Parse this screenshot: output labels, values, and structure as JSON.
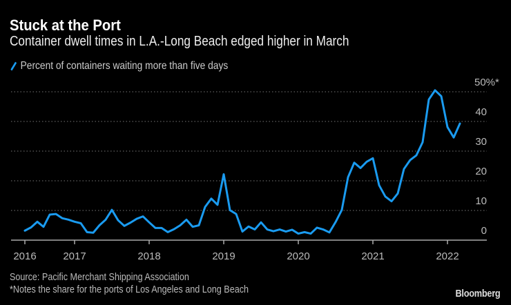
{
  "title": "Stuck at the Port",
  "subtitle": "Container dwell times in L.A.-Long Beach edged higher in March",
  "footer": {
    "source": "Source: Pacific Merchant Shipping Association",
    "note": "*Notes the share for the ports of Los Angeles and Long Beach",
    "logo": "Bloomberg"
  },
  "chart_data": {
    "type": "line",
    "title": "Stuck at the Port",
    "subtitle": "Container dwell times in L.A.-Long Beach edged higher in March",
    "legend_position": "top-left",
    "grid": true,
    "series": [
      {
        "name": "Percent of containers waiting more than five days",
        "color": "#1a9bf0",
        "start": "2016-05",
        "frequency": "monthly",
        "values": [
          3.2,
          4.3,
          6.2,
          4.5,
          8.6,
          8.8,
          7.4,
          6.9,
          6.2,
          5.7,
          2.7,
          2.5,
          5.0,
          6.9,
          10.2,
          6.7,
          4.8,
          5.9,
          7.2,
          8.0,
          6.0,
          4.1,
          4.1,
          2.7,
          3.7,
          5.0,
          6.9,
          4.5,
          5.0,
          11.2,
          14.0,
          11.9,
          22.2,
          10.1,
          8.8,
          2.9,
          4.6,
          3.6,
          6.0,
          3.6,
          3.0,
          3.6,
          2.9,
          3.5,
          2.2,
          2.7,
          2.2,
          4.2,
          3.6,
          2.6,
          6.1,
          10.2,
          21.2,
          26.1,
          24.3,
          26.4,
          27.6,
          18.5,
          14.7,
          13.1,
          15.7,
          24.0,
          27.0,
          28.6,
          33.0,
          47.4,
          50.5,
          48.5,
          38.1,
          34.6,
          39.3
        ]
      }
    ],
    "x_ticks": [
      "2016",
      "2017",
      "2018",
      "2019",
      "2020",
      "2021",
      "2022"
    ],
    "y_ticks": [
      "0",
      "10",
      "20",
      "30",
      "40",
      "50%*"
    ],
    "ylim": [
      0,
      50
    ],
    "xlim": [
      "2016-05",
      "2022-03"
    ]
  }
}
